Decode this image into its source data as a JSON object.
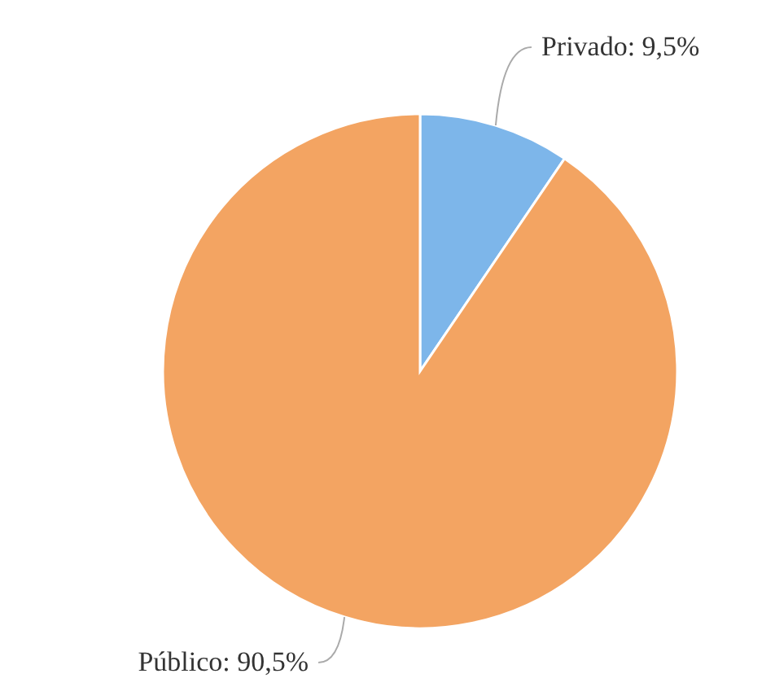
{
  "chart_data": {
    "type": "pie",
    "categories": [
      "Privado",
      "Público"
    ],
    "values": [
      9.5,
      90.5
    ],
    "colors": [
      "#7db6ea",
      "#f3a462"
    ],
    "value_labels": [
      "9,5%",
      "90,5%"
    ]
  }
}
